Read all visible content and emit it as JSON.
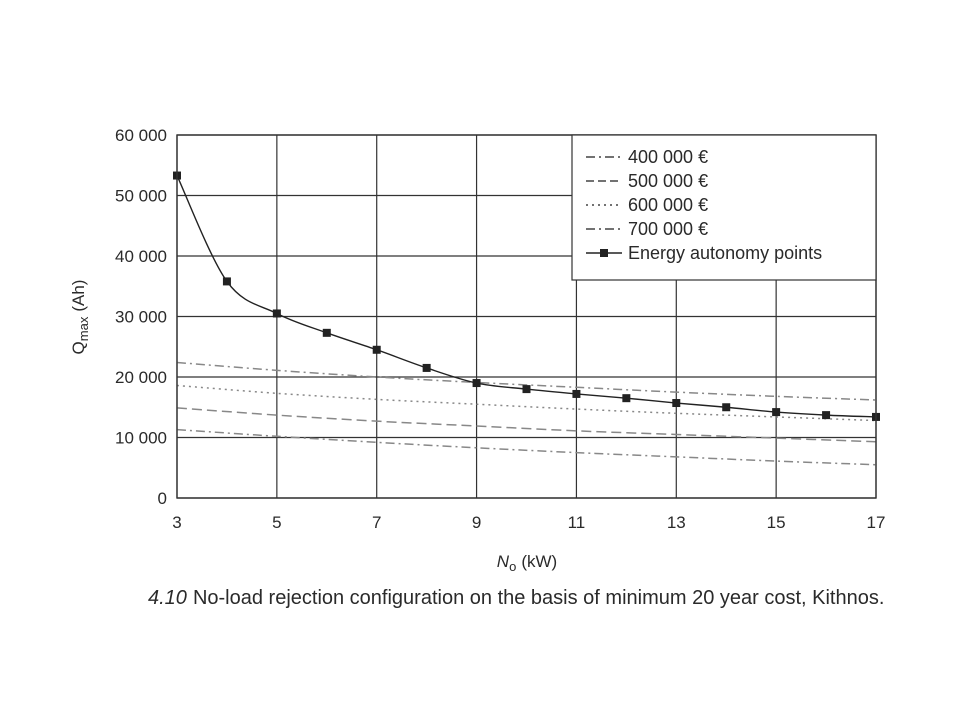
{
  "caption": {
    "number": "4.10",
    "text": "No-load rejection configuration on the basis of minimum 20 year cost, Kithnos."
  },
  "chart_data": {
    "type": "line",
    "title": "",
    "xlabel_main": "N",
    "xlabel_sub": "o",
    "xlabel_unit": "(kW)",
    "ylabel_main": "Q",
    "ylabel_sub": "max",
    "ylabel_unit": "(Ah)",
    "xlim": [
      3,
      17
    ],
    "ylim": [
      0,
      60000
    ],
    "xticks": [
      3,
      5,
      7,
      9,
      11,
      13,
      15,
      17
    ],
    "yticks": [
      0,
      10000,
      20000,
      30000,
      40000,
      50000,
      60000
    ],
    "ytick_labels": [
      "0",
      "10 000",
      "20 000",
      "30 000",
      "40 000",
      "50 000",
      "60 000"
    ],
    "grid": true,
    "legend_position": "top-right",
    "series": [
      {
        "name": "400 000 €",
        "style": "dashdot",
        "color": "#888888",
        "x": [
          3,
          5,
          7,
          9,
          11,
          13,
          15,
          17
        ],
        "y": [
          11300,
          10200,
          9200,
          8300,
          7500,
          6800,
          6100,
          5500
        ]
      },
      {
        "name": "500 000 €",
        "style": "dashed",
        "color": "#888888",
        "x": [
          3,
          5,
          7,
          9,
          11,
          13,
          15,
          17
        ],
        "y": [
          14900,
          13700,
          12700,
          11900,
          11100,
          10500,
          9900,
          9300
        ]
      },
      {
        "name": "600 000 €",
        "style": "dotted",
        "color": "#888888",
        "x": [
          3,
          5,
          7,
          9,
          11,
          13,
          15,
          17
        ],
        "y": [
          18600,
          17300,
          16300,
          15500,
          14700,
          14000,
          13400,
          12800
        ]
      },
      {
        "name": "700 000 €",
        "style": "dashdot",
        "color": "#888888",
        "x": [
          3,
          5,
          7,
          9,
          11,
          13,
          15,
          17
        ],
        "y": [
          22400,
          21100,
          20000,
          19100,
          18300,
          17500,
          16800,
          16200
        ]
      },
      {
        "name": "Energy autonomy points",
        "style": "solid-markers",
        "color": "#222222",
        "x": [
          3,
          4,
          5,
          6,
          7,
          8,
          9,
          10,
          11,
          12,
          13,
          14,
          15,
          16,
          17
        ],
        "y": [
          53300,
          35800,
          30500,
          27300,
          24500,
          21500,
          19000,
          18000,
          17200,
          16500,
          15700,
          15000,
          14200,
          13700,
          13400
        ]
      }
    ]
  }
}
